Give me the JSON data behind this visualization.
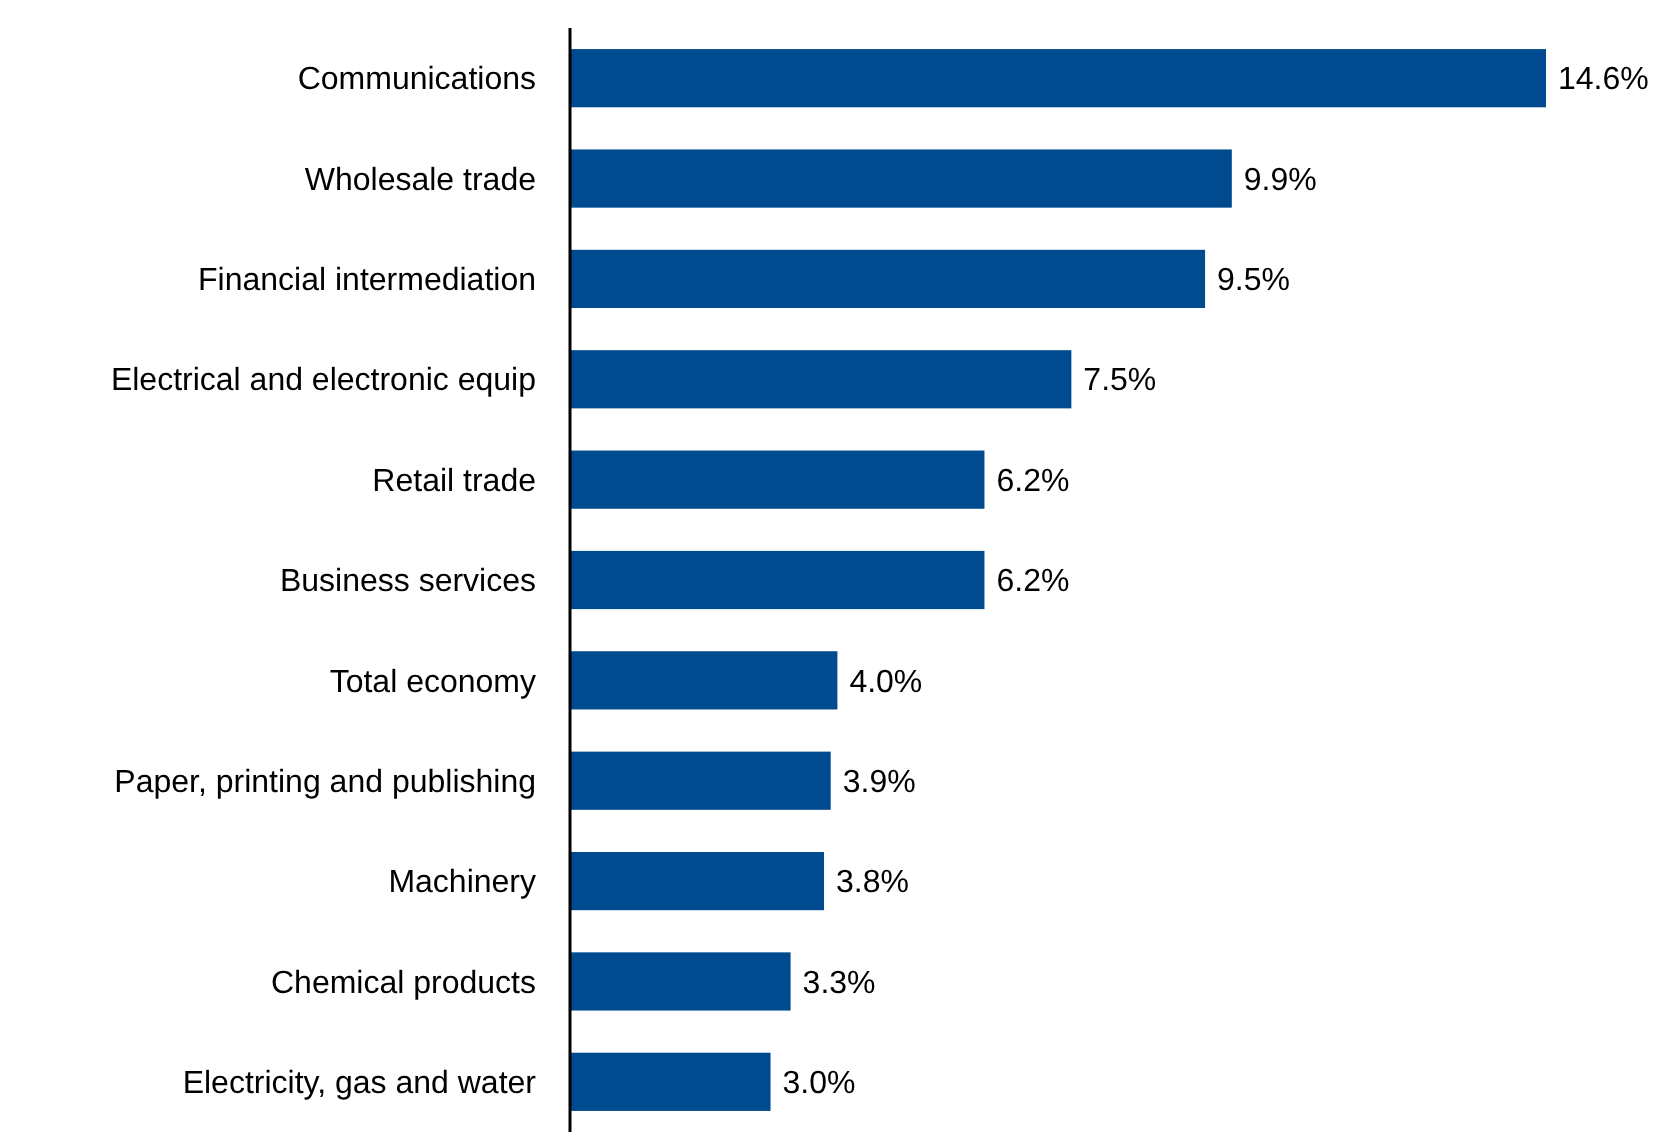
{
  "chart_data": {
    "type": "bar",
    "orientation": "horizontal",
    "categories": [
      "Communications",
      "Wholesale trade",
      "Financial intermediation",
      "Electrical and electronic equip",
      "Retail trade",
      "Business services",
      "Total economy",
      "Paper, printing and publishing",
      "Machinery",
      "Chemical products",
      "Electricity, gas and water"
    ],
    "values": [
      14.6,
      9.9,
      9.5,
      7.5,
      6.2,
      6.2,
      4.0,
      3.9,
      3.8,
      3.3,
      3.0
    ],
    "value_labels": [
      "14.6%",
      "9.9%",
      "9.5%",
      "7.5%",
      "6.2%",
      "6.2%",
      "4.0%",
      "3.9%",
      "3.8%",
      "3.3%",
      "3.0%"
    ],
    "color": "#004a8f"
  }
}
